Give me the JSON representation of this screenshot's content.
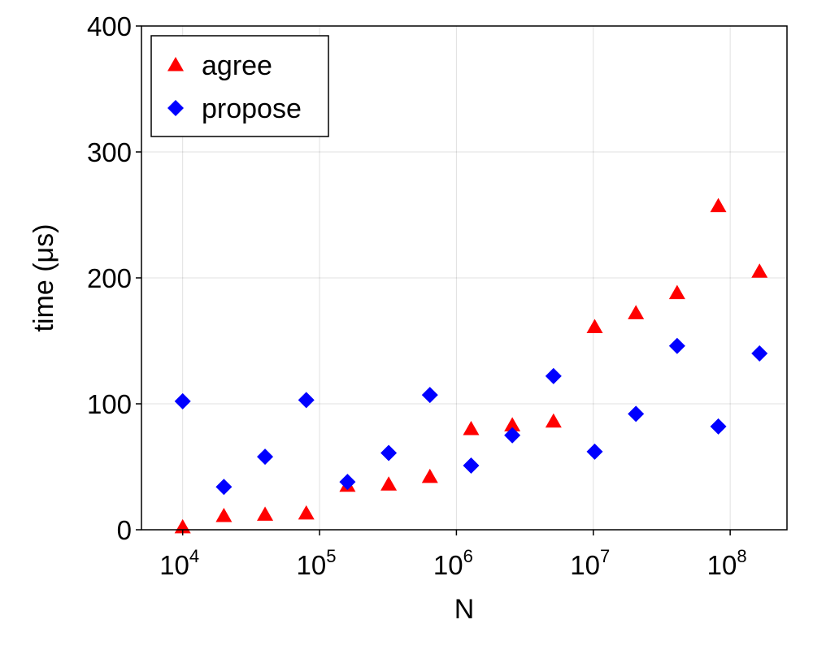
{
  "chart_data": {
    "type": "scatter",
    "title": "",
    "xlabel": "N",
    "ylabel": "time (μs)",
    "xscale": "log",
    "xlim": [
      5000,
      260000000
    ],
    "ylim": [
      0,
      400
    ],
    "x_ticks": [
      {
        "value": 10000,
        "base": "10",
        "exp": "4"
      },
      {
        "value": 100000,
        "base": "10",
        "exp": "5"
      },
      {
        "value": 1000000,
        "base": "10",
        "exp": "6"
      },
      {
        "value": 10000000,
        "base": "10",
        "exp": "7"
      },
      {
        "value": 100000000,
        "base": "10",
        "exp": "8"
      }
    ],
    "y_ticks": [
      {
        "value": 0,
        "label": "0"
      },
      {
        "value": 100,
        "label": "100"
      },
      {
        "value": 200,
        "label": "200"
      },
      {
        "value": 300,
        "label": "300"
      },
      {
        "value": 400,
        "label": "400"
      }
    ],
    "grid": true,
    "legend_position": "top-left",
    "series": [
      {
        "name": "agree",
        "marker": "triangle",
        "color": "#ff0000",
        "x": [
          10000,
          20000,
          40000,
          80000,
          160000,
          320000,
          640000,
          1280000,
          2560000,
          5120000,
          10240000,
          20480000,
          40960000,
          81920000,
          163840000
        ],
        "y": [
          2,
          11,
          12,
          13,
          35,
          36,
          42,
          80,
          83,
          86,
          161,
          172,
          188,
          257,
          205
        ]
      },
      {
        "name": "propose",
        "marker": "diamond",
        "color": "#0000ff",
        "x": [
          10000,
          20000,
          40000,
          80000,
          160000,
          320000,
          640000,
          1280000,
          2560000,
          5120000,
          10240000,
          20480000,
          40960000,
          81920000,
          163840000
        ],
        "y": [
          102,
          34,
          58,
          103,
          38,
          61,
          107,
          51,
          75,
          122,
          62,
          92,
          146,
          82,
          140
        ]
      }
    ]
  }
}
